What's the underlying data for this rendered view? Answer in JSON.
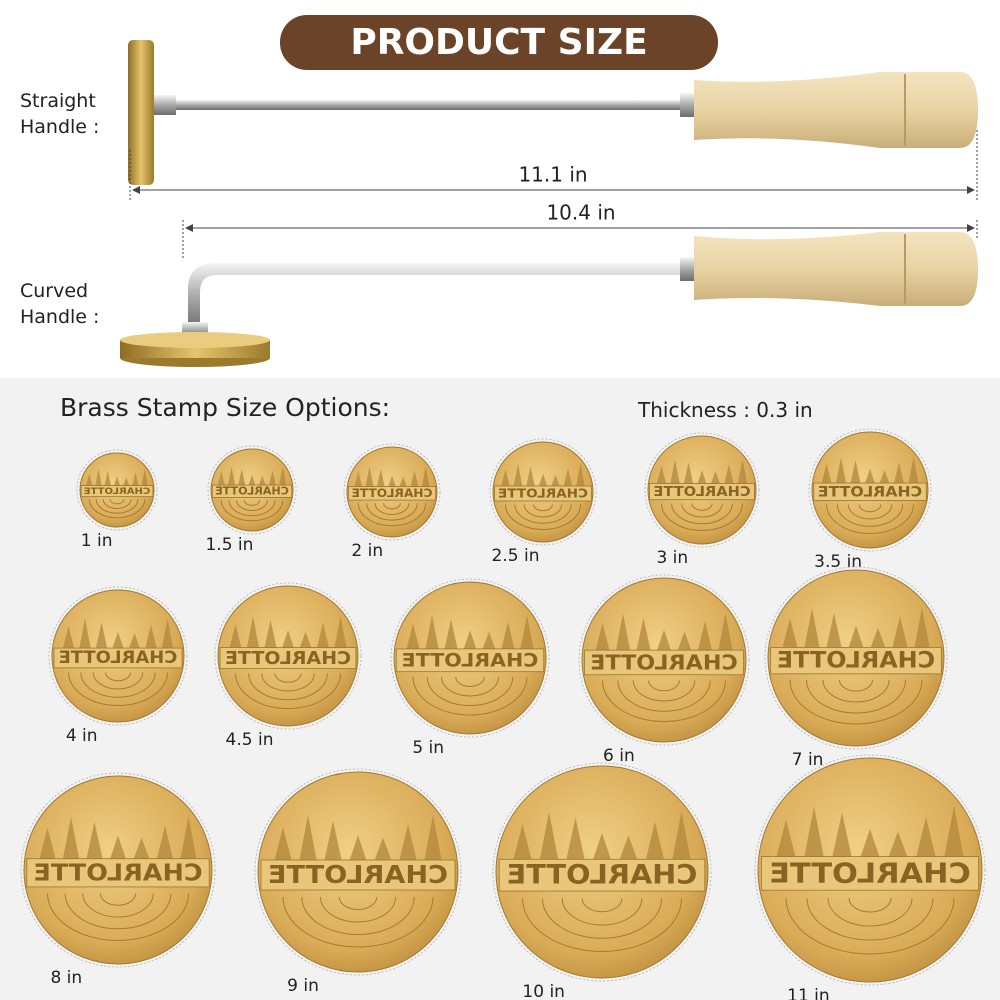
{
  "header": {
    "title": "PRODUCT SIZE"
  },
  "handles": [
    {
      "label": "Straight Handle :",
      "length": "11.1 in"
    },
    {
      "label": "Curved Handle :",
      "length": "10.4 in"
    }
  ],
  "options": {
    "title": "Brass Stamp Size Options:",
    "thickness": "Thickness : 0.3 in",
    "stamp_text": "CHARLOTTE",
    "sizes": [
      "1 in",
      "1.5 in",
      "2 in",
      "2.5 in",
      "3 in",
      "3.5 in",
      "4 in",
      "4.5 in",
      "5 in",
      "6 in",
      "7 in",
      "8 in",
      "9 in",
      "10 in",
      "11 in"
    ]
  }
}
